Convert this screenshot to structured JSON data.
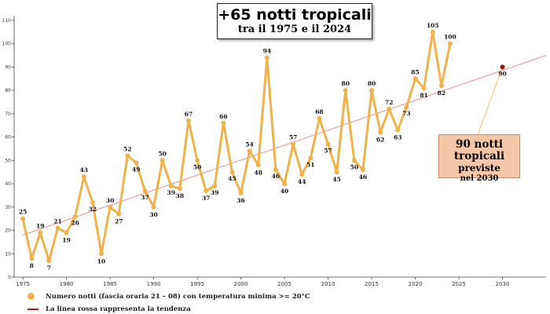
{
  "title": {
    "main": "+65 notti tropicali",
    "sub": "tra il 1975 e il 2024"
  },
  "prediction": {
    "line1": "90 notti",
    "line2a": "tropicali",
    "line2b": " previste",
    "line3": "nel 2030"
  },
  "legend": {
    "series": "Numero notti (fascia oraria 21 – 08) con temperatura minima >= 20°C",
    "trend": "La linea rossa rappresenta la tendenza"
  },
  "colors": {
    "series": "#f0b24a",
    "trend": "#e8a0a0",
    "prediction_point": "#a01010"
  },
  "chart_data": {
    "type": "line",
    "x": [
      1975,
      1976,
      1977,
      1978,
      1979,
      1980,
      1981,
      1982,
      1983,
      1984,
      1985,
      1986,
      1987,
      1988,
      1989,
      1990,
      1991,
      1992,
      1993,
      1994,
      1995,
      1996,
      1997,
      1998,
      1999,
      2000,
      2001,
      2002,
      2003,
      2004,
      2005,
      2006,
      2007,
      2008,
      2009,
      2010,
      2011,
      2012,
      2013,
      2014,
      2015,
      2016,
      2017,
      2018,
      2019,
      2020,
      2021,
      2022,
      2023,
      2024
    ],
    "series": [
      {
        "values": [
          25,
          8,
          19,
          7,
          21,
          19,
          26,
          43,
          32,
          10,
          30,
          27,
          52,
          49,
          37,
          30,
          50,
          39,
          38,
          67,
          50,
          37,
          39,
          66,
          45,
          36,
          54,
          48,
          94,
          46,
          40,
          57,
          44,
          51,
          68,
          57,
          45,
          80,
          50,
          46,
          80,
          62,
          72,
          63,
          73,
          85,
          81,
          105,
          82,
          100
        ]
      }
    ],
    "prediction": {
      "x": 2030,
      "y": 90
    },
    "trend": {
      "x": [
        1975,
        2035
      ],
      "y": [
        18,
        95
      ]
    },
    "xticks": [
      1975,
      1980,
      1985,
      1990,
      1995,
      2000,
      2005,
      2010,
      2015,
      2020,
      2025,
      2030
    ],
    "yticks": [
      0,
      10,
      20,
      30,
      40,
      50,
      60,
      70,
      80,
      90,
      100,
      110
    ],
    "xlim": [
      1974,
      2035
    ],
    "ylim": [
      0,
      112
    ],
    "grid": false,
    "legend_position": "bottom-left"
  }
}
